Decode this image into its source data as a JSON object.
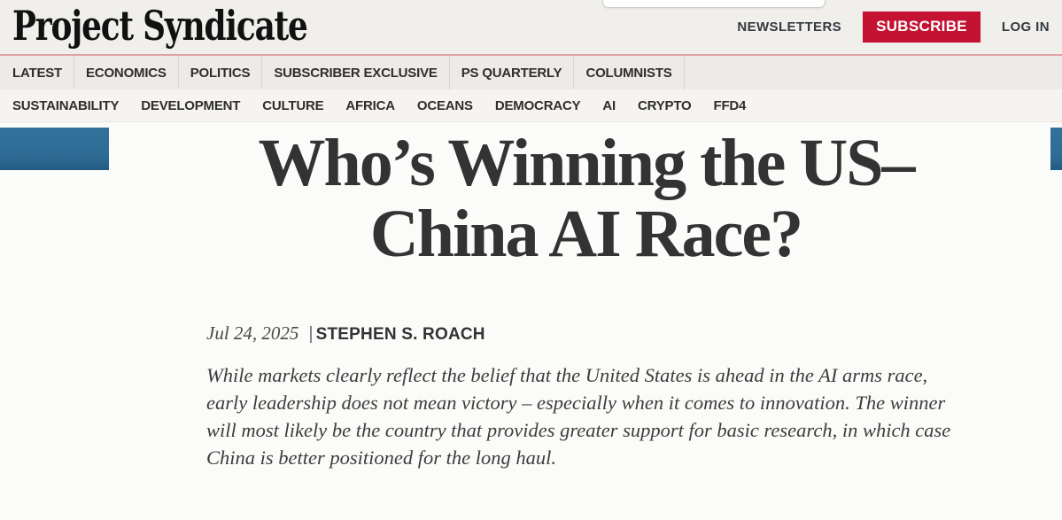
{
  "brand": {
    "logo": "Project Syndicate"
  },
  "header": {
    "newsletters": "NEWSLETTERS",
    "subscribe": "SUBSCRIBE",
    "login": "LOG IN"
  },
  "nav_primary": [
    "LATEST",
    "ECONOMICS",
    "POLITICS",
    "SUBSCRIBER EXCLUSIVE",
    "PS QUARTERLY",
    "COLUMNISTS"
  ],
  "nav_secondary": [
    "SUSTAINABILITY",
    "DEVELOPMENT",
    "CULTURE",
    "AFRICA",
    "OCEANS",
    "DEMOCRACY",
    "AI",
    "CRYPTO",
    "FFD4"
  ],
  "article": {
    "title_lines": [
      "Who’s Winning the US–",
      "China AI Race?"
    ],
    "date": "Jul 24, 2025",
    "separator": "|",
    "author": "STEPHEN S. ROACH",
    "summary": "While markets clearly reflect the belief that the United States is ahead in the AI arms race, early leadership does not mean victory – especially when it comes to innovation. The winner will most likely be the country that provides greater support for basic research, in which case China is better positioned for the long haul."
  },
  "colors": {
    "accent_red": "#c41233",
    "pink_rule": "#dfa2a2",
    "edge_image_blue": "#2d6b94",
    "header_bg": "#f0efec",
    "nav_primary_bg": "#edebe8",
    "nav_secondary_bg": "#f5f4f1",
    "page_bg": "#fbfbf9",
    "headline_text": "#333333"
  }
}
